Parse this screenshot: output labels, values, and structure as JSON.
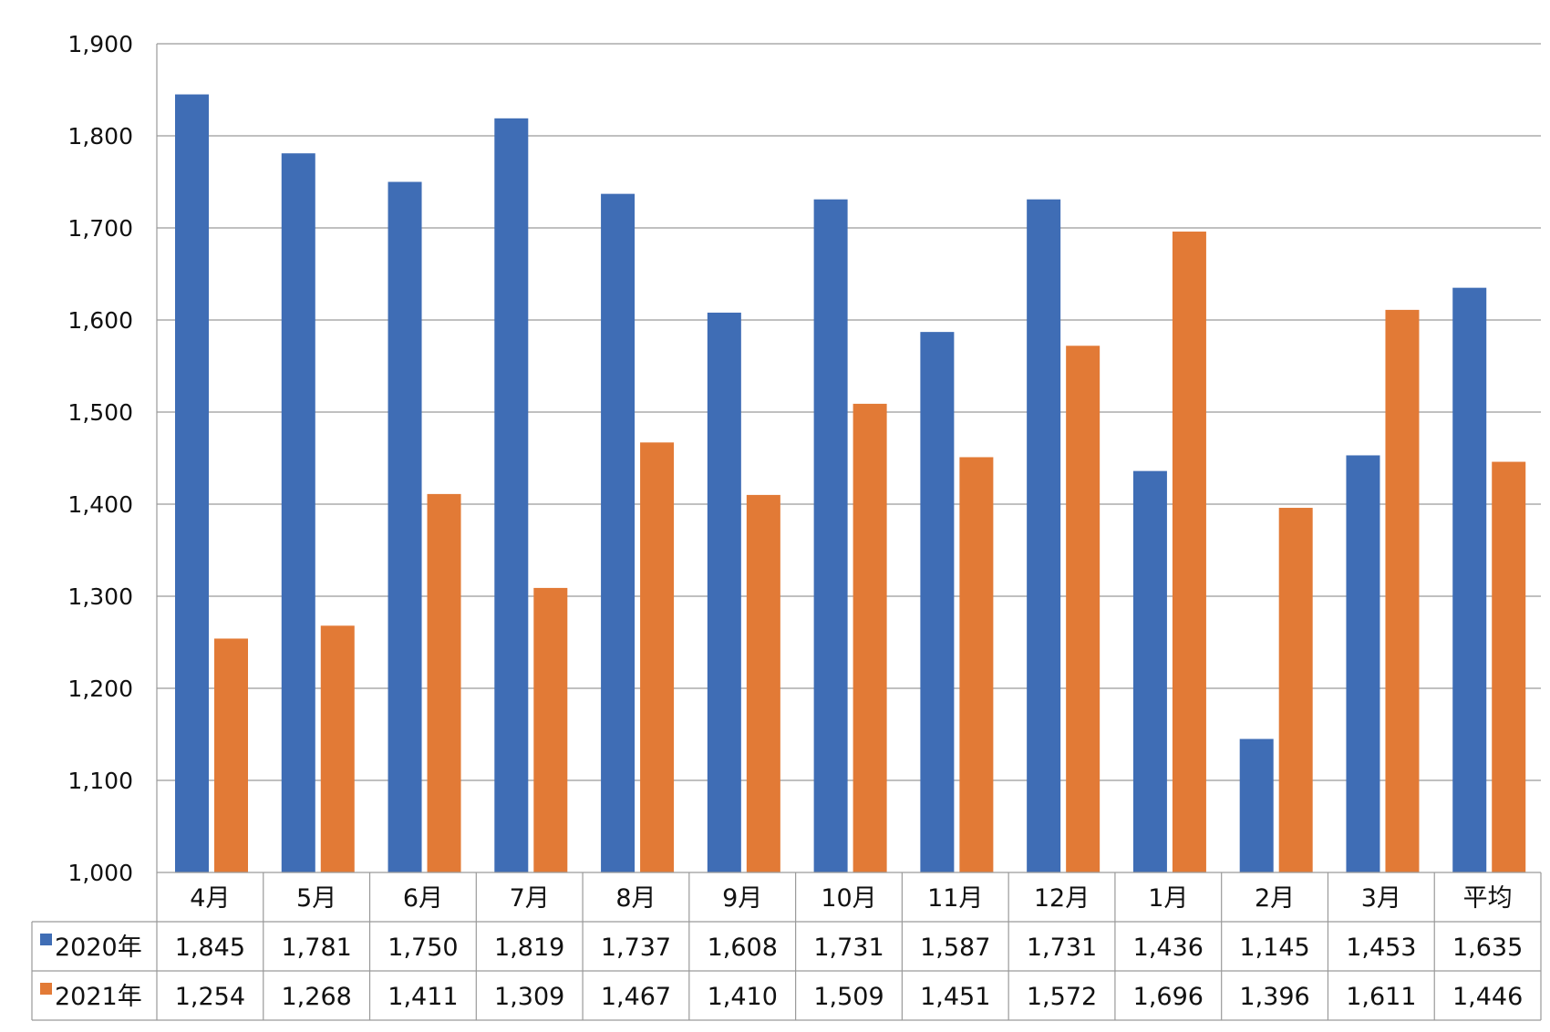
{
  "chart_data": {
    "type": "bar",
    "categories": [
      "4月",
      "5月",
      "6月",
      "7月",
      "8月",
      "9月",
      "10月",
      "11月",
      "12月",
      "1月",
      "2月",
      "3月",
      "平均"
    ],
    "series": [
      {
        "name": "2020年",
        "color": "#3F6DB5",
        "values": [
          1845,
          1781,
          1750,
          1819,
          1737,
          1608,
          1731,
          1587,
          1731,
          1436,
          1145,
          1453,
          1635
        ],
        "labels": [
          "1,845",
          "1,781",
          "1,750",
          "1,819",
          "1,737",
          "1,608",
          "1,731",
          "1,587",
          "1,731",
          "1,436",
          "1,145",
          "1,453",
          "1,635"
        ]
      },
      {
        "name": "2021年",
        "color": "#E27A36",
        "values": [
          1254,
          1268,
          1411,
          1309,
          1467,
          1410,
          1509,
          1451,
          1572,
          1696,
          1396,
          1611,
          1446
        ],
        "labels": [
          "1,254",
          "1,268",
          "1,411",
          "1,309",
          "1,467",
          "1,410",
          "1,509",
          "1,451",
          "1,572",
          "1,696",
          "1,396",
          "1,611",
          "1,446"
        ]
      }
    ],
    "ylim": [
      1000,
      1900
    ],
    "yticks": [
      1000,
      1100,
      1200,
      1300,
      1400,
      1500,
      1600,
      1700,
      1800,
      1900
    ],
    "ytick_labels": [
      "1,000",
      "1,100",
      "1,200",
      "1,300",
      "1,400",
      "1,500",
      "1,600",
      "1,700",
      "1,800",
      "1,900"
    ],
    "grid": true,
    "legend": "data-table",
    "title": "",
    "xlabel": "",
    "ylabel": ""
  }
}
